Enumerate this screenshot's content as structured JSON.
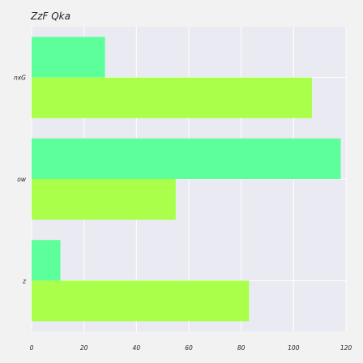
{
  "chart_data": {
    "type": "bar",
    "orientation": "horizontal",
    "title": "ZzF Qka",
    "xlabel": "",
    "ylabel": "",
    "categories": [
      "nxG",
      "ow",
      "z"
    ],
    "series": [
      {
        "values": [
          28,
          118,
          11
        ],
        "color": "#5cff9a"
      },
      {
        "values": [
          107,
          55,
          83
        ],
        "color": "#aaff4a"
      }
    ],
    "xlim": [
      0,
      120
    ],
    "xticks": [
      0,
      20,
      40,
      60,
      80,
      100,
      120
    ],
    "grid": true,
    "legend": "none"
  },
  "colors": {
    "page_background": "#f2f2f2",
    "plot_background": "#eaeaf2",
    "grid": "#ffffff"
  }
}
